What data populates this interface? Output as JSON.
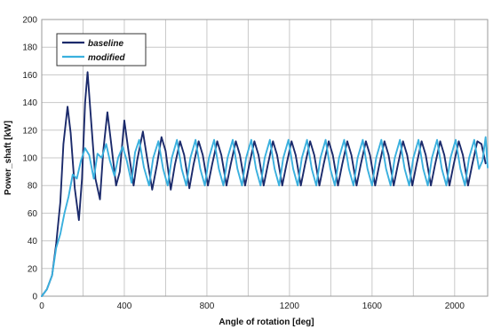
{
  "chart_data": {
    "type": "line",
    "xlabel": "Angle of rotation [deg]",
    "ylabel": "Power_shaft [kW]",
    "xlim": [
      0,
      2160
    ],
    "ylim": [
      0,
      200
    ],
    "x_ticks": [
      "0",
      "400",
      "800",
      "1200",
      "1600",
      "2000"
    ],
    "y_ticks": [
      "0",
      "20",
      "40",
      "60",
      "80",
      "100",
      "120",
      "140",
      "160",
      "180",
      "200"
    ],
    "grid": true,
    "legend": "top-left",
    "series": [
      {
        "name": "baseline",
        "color": "#1b2a6b",
        "points": [
          [
            0,
            0
          ],
          [
            25,
            5
          ],
          [
            50,
            15
          ],
          [
            70,
            38
          ],
          [
            90,
            68
          ],
          [
            105,
            110
          ],
          [
            125,
            137
          ],
          [
            140,
            118
          ],
          [
            160,
            78
          ],
          [
            180,
            55
          ],
          [
            195,
            85
          ],
          [
            210,
            140
          ],
          [
            222,
            162
          ],
          [
            240,
            125
          ],
          [
            260,
            85
          ],
          [
            282,
            70
          ],
          [
            298,
            105
          ],
          [
            318,
            133
          ],
          [
            335,
            112
          ],
          [
            360,
            80
          ],
          [
            378,
            90
          ],
          [
            400,
            127
          ],
          [
            420,
            105
          ],
          [
            445,
            80
          ],
          [
            462,
            98
          ],
          [
            490,
            119
          ],
          [
            510,
            100
          ],
          [
            535,
            77
          ],
          [
            558,
            95
          ],
          [
            580,
            115
          ],
          [
            600,
            105
          ],
          [
            625,
            77
          ],
          [
            645,
            95
          ],
          [
            670,
            112
          ],
          [
            690,
            102
          ],
          [
            715,
            78
          ],
          [
            735,
            95
          ],
          [
            760,
            112
          ],
          [
            780,
            102
          ],
          [
            805,
            80
          ],
          [
            825,
            95
          ],
          [
            850,
            112
          ],
          [
            870,
            102
          ],
          [
            895,
            80
          ],
          [
            915,
            95
          ],
          [
            940,
            112
          ],
          [
            960,
            102
          ],
          [
            985,
            80
          ],
          [
            1005,
            95
          ],
          [
            1030,
            112
          ],
          [
            1050,
            102
          ],
          [
            1075,
            80
          ],
          [
            1095,
            95
          ],
          [
            1120,
            112
          ],
          [
            1140,
            102
          ],
          [
            1165,
            80
          ],
          [
            1185,
            95
          ],
          [
            1210,
            112
          ],
          [
            1230,
            102
          ],
          [
            1255,
            80
          ],
          [
            1275,
            95
          ],
          [
            1300,
            112
          ],
          [
            1320,
            102
          ],
          [
            1345,
            80
          ],
          [
            1365,
            95
          ],
          [
            1390,
            112
          ],
          [
            1410,
            102
          ],
          [
            1435,
            80
          ],
          [
            1455,
            95
          ],
          [
            1480,
            112
          ],
          [
            1500,
            102
          ],
          [
            1525,
            80
          ],
          [
            1545,
            95
          ],
          [
            1570,
            112
          ],
          [
            1590,
            102
          ],
          [
            1615,
            80
          ],
          [
            1635,
            95
          ],
          [
            1660,
            112
          ],
          [
            1680,
            102
          ],
          [
            1705,
            80
          ],
          [
            1725,
            95
          ],
          [
            1750,
            112
          ],
          [
            1770,
            102
          ],
          [
            1795,
            80
          ],
          [
            1815,
            95
          ],
          [
            1840,
            112
          ],
          [
            1860,
            102
          ],
          [
            1885,
            80
          ],
          [
            1905,
            95
          ],
          [
            1930,
            112
          ],
          [
            1950,
            102
          ],
          [
            1975,
            80
          ],
          [
            1995,
            95
          ],
          [
            2020,
            112
          ],
          [
            2040,
            102
          ],
          [
            2065,
            80
          ],
          [
            2085,
            95
          ],
          [
            2110,
            112
          ],
          [
            2130,
            110
          ],
          [
            2150,
            96
          ]
        ]
      },
      {
        "name": "modified",
        "color": "#3ab0de",
        "points": [
          [
            0,
            0
          ],
          [
            25,
            5
          ],
          [
            50,
            15
          ],
          [
            70,
            35
          ],
          [
            90,
            45
          ],
          [
            110,
            60
          ],
          [
            130,
            72
          ],
          [
            150,
            88
          ],
          [
            170,
            85
          ],
          [
            190,
            98
          ],
          [
            210,
            107
          ],
          [
            230,
            102
          ],
          [
            252,
            85
          ],
          [
            270,
            103
          ],
          [
            290,
            100
          ],
          [
            312,
            110
          ],
          [
            330,
            98
          ],
          [
            352,
            87
          ],
          [
            370,
            100
          ],
          [
            392,
            108
          ],
          [
            412,
            98
          ],
          [
            435,
            82
          ],
          [
            452,
            104
          ],
          [
            472,
            113
          ],
          [
            495,
            93
          ],
          [
            520,
            80
          ],
          [
            540,
            100
          ],
          [
            565,
            112
          ],
          [
            588,
            92
          ],
          [
            610,
            80
          ],
          [
            630,
            100
          ],
          [
            655,
            113
          ],
          [
            678,
            92
          ],
          [
            700,
            80
          ],
          [
            720,
            100
          ],
          [
            745,
            113
          ],
          [
            768,
            92
          ],
          [
            790,
            80
          ],
          [
            810,
            100
          ],
          [
            835,
            113
          ],
          [
            858,
            92
          ],
          [
            880,
            80
          ],
          [
            900,
            100
          ],
          [
            925,
            113
          ],
          [
            948,
            92
          ],
          [
            970,
            80
          ],
          [
            990,
            100
          ],
          [
            1015,
            113
          ],
          [
            1038,
            92
          ],
          [
            1060,
            80
          ],
          [
            1080,
            100
          ],
          [
            1105,
            113
          ],
          [
            1128,
            92
          ],
          [
            1150,
            80
          ],
          [
            1170,
            100
          ],
          [
            1195,
            113
          ],
          [
            1218,
            92
          ],
          [
            1240,
            80
          ],
          [
            1260,
            100
          ],
          [
            1285,
            113
          ],
          [
            1308,
            92
          ],
          [
            1330,
            80
          ],
          [
            1350,
            100
          ],
          [
            1375,
            113
          ],
          [
            1398,
            92
          ],
          [
            1420,
            80
          ],
          [
            1440,
            100
          ],
          [
            1465,
            113
          ],
          [
            1488,
            92
          ],
          [
            1510,
            80
          ],
          [
            1530,
            100
          ],
          [
            1555,
            113
          ],
          [
            1578,
            92
          ],
          [
            1600,
            80
          ],
          [
            1620,
            100
          ],
          [
            1645,
            113
          ],
          [
            1668,
            92
          ],
          [
            1690,
            80
          ],
          [
            1710,
            100
          ],
          [
            1735,
            113
          ],
          [
            1758,
            92
          ],
          [
            1780,
            80
          ],
          [
            1800,
            100
          ],
          [
            1825,
            113
          ],
          [
            1848,
            92
          ],
          [
            1870,
            80
          ],
          [
            1890,
            100
          ],
          [
            1915,
            113
          ],
          [
            1938,
            92
          ],
          [
            1960,
            80
          ],
          [
            1980,
            100
          ],
          [
            2005,
            113
          ],
          [
            2028,
            92
          ],
          [
            2050,
            80
          ],
          [
            2070,
            100
          ],
          [
            2095,
            113
          ],
          [
            2118,
            92
          ],
          [
            2135,
            98
          ],
          [
            2150,
            115
          ],
          [
            2160,
            93
          ]
        ]
      }
    ]
  }
}
